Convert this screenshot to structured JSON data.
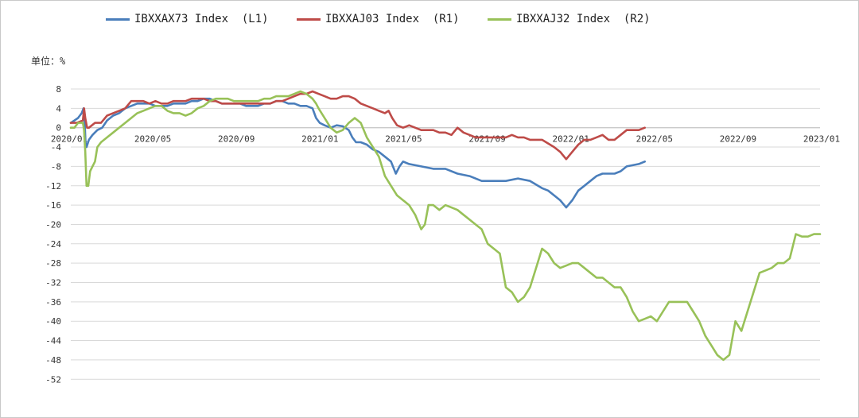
{
  "unit_label": "单位：%",
  "colors": {
    "L1": "#4a7ebb",
    "R1": "#be4b48",
    "R2": "#98c158",
    "grid": "#d9d9d9",
    "axis": "#bfbfbf"
  },
  "chart_data": {
    "type": "line",
    "ylim": [
      -52,
      8
    ],
    "y_ticks": [
      8,
      4,
      0,
      -4,
      -8,
      -12,
      -16,
      -20,
      -24,
      -28,
      -32,
      -36,
      -40,
      -44,
      -48,
      -52
    ],
    "x_ticks": [
      "2020/01",
      "2020/05",
      "2020/09",
      "2021/01",
      "2021/05",
      "2021/09",
      "2022/01",
      "2022/05",
      "2022/09",
      "2023/01"
    ],
    "grid": "horizontal",
    "legend_position": "top",
    "series": [
      {
        "name": "IBXXAX73 Index  (L1)",
        "color": "#4a7ebb",
        "points": [
          [
            0,
            1
          ],
          [
            0.3,
            1.5
          ],
          [
            0.6,
            2
          ],
          [
            0.9,
            3
          ],
          [
            1.05,
            4
          ],
          [
            1.15,
            1
          ],
          [
            1.22,
            -3
          ],
          [
            1.3,
            -4
          ],
          [
            1.5,
            -2.5
          ],
          [
            1.8,
            -1.5
          ],
          [
            2.2,
            -0.5
          ],
          [
            2.6,
            0
          ],
          [
            3,
            1.5
          ],
          [
            3.5,
            2.5
          ],
          [
            4,
            3
          ],
          [
            4.5,
            4
          ],
          [
            5,
            4.5
          ],
          [
            5.5,
            5
          ],
          [
            6,
            5
          ],
          [
            6.5,
            5
          ],
          [
            7,
            4.5
          ],
          [
            7.5,
            4.5
          ],
          [
            8,
            4.5
          ],
          [
            8.5,
            5
          ],
          [
            9,
            5
          ],
          [
            9.5,
            5
          ],
          [
            10,
            5.5
          ],
          [
            10.5,
            5.5
          ],
          [
            11,
            6
          ],
          [
            11.5,
            6
          ],
          [
            12,
            5.5
          ],
          [
            12.5,
            5
          ],
          [
            13,
            5
          ],
          [
            13.5,
            5
          ],
          [
            14,
            5
          ],
          [
            14.5,
            4.5
          ],
          [
            15,
            4.5
          ],
          [
            15.5,
            4.5
          ],
          [
            16,
            5
          ],
          [
            16.5,
            5
          ],
          [
            17,
            5.5
          ],
          [
            17.5,
            5.5
          ],
          [
            18,
            5
          ],
          [
            18.5,
            5
          ],
          [
            19,
            4.5
          ],
          [
            19.5,
            4.5
          ],
          [
            20,
            4
          ],
          [
            20.3,
            2
          ],
          [
            20.6,
            1
          ],
          [
            21,
            0.5
          ],
          [
            21.5,
            0
          ],
          [
            22,
            0.5
          ],
          [
            22.5,
            0.3
          ],
          [
            23,
            -0.5
          ],
          [
            23.3,
            -2
          ],
          [
            23.6,
            -3
          ],
          [
            24,
            -3
          ],
          [
            24.5,
            -3.5
          ],
          [
            25,
            -4.5
          ],
          [
            25.5,
            -5
          ],
          [
            26,
            -6
          ],
          [
            26.5,
            -7
          ],
          [
            26.9,
            -9.5
          ],
          [
            27.2,
            -8
          ],
          [
            27.5,
            -7
          ],
          [
            28,
            -7.5
          ],
          [
            29,
            -8
          ],
          [
            30,
            -8.5
          ],
          [
            31,
            -8.5
          ],
          [
            32,
            -9.5
          ],
          [
            33,
            -10
          ],
          [
            34,
            -11
          ],
          [
            35,
            -11
          ],
          [
            36,
            -11
          ],
          [
            37,
            -10.5
          ],
          [
            38,
            -11
          ],
          [
            39,
            -12.5
          ],
          [
            39.5,
            -13
          ],
          [
            40,
            -14
          ],
          [
            40.5,
            -15
          ],
          [
            41,
            -16.5
          ],
          [
            41.5,
            -15
          ],
          [
            42,
            -13
          ],
          [
            42.5,
            -12
          ],
          [
            43,
            -11
          ],
          [
            43.5,
            -10
          ],
          [
            44,
            -9.5
          ],
          [
            45,
            -9.5
          ],
          [
            45.5,
            -9
          ],
          [
            46,
            -8
          ],
          [
            47,
            -7.5
          ],
          [
            47.5,
            -7
          ]
        ]
      },
      {
        "name": "IBXXAJ03 Index  (R1)",
        "color": "#be4b48",
        "points": [
          [
            0,
            1
          ],
          [
            0.5,
            1
          ],
          [
            1,
            1.5
          ],
          [
            1.1,
            4
          ],
          [
            1.2,
            2
          ],
          [
            1.35,
            0
          ],
          [
            1.5,
            0
          ],
          [
            2,
            1
          ],
          [
            2.5,
            1
          ],
          [
            3,
            2.5
          ],
          [
            3.5,
            3
          ],
          [
            4,
            3.5
          ],
          [
            4.5,
            4
          ],
          [
            5,
            5.5
          ],
          [
            5.5,
            5.5
          ],
          [
            6,
            5.5
          ],
          [
            6.5,
            5
          ],
          [
            7,
            5.5
          ],
          [
            7.5,
            5
          ],
          [
            8,
            5
          ],
          [
            8.5,
            5.5
          ],
          [
            9,
            5.5
          ],
          [
            9.5,
            5.5
          ],
          [
            10,
            6
          ],
          [
            10.5,
            6
          ],
          [
            11,
            6
          ],
          [
            11.5,
            5.5
          ],
          [
            12,
            5.5
          ],
          [
            12.5,
            5
          ],
          [
            13,
            5
          ],
          [
            13.5,
            5
          ],
          [
            14,
            5
          ],
          [
            14.5,
            5
          ],
          [
            15,
            5
          ],
          [
            15.5,
            5
          ],
          [
            16,
            5
          ],
          [
            16.5,
            5
          ],
          [
            17,
            5.5
          ],
          [
            17.5,
            5.5
          ],
          [
            18,
            6
          ],
          [
            18.5,
            6.5
          ],
          [
            19,
            7
          ],
          [
            19.5,
            7
          ],
          [
            20,
            7.5
          ],
          [
            20.5,
            7
          ],
          [
            21,
            6.5
          ],
          [
            21.5,
            6
          ],
          [
            22,
            6
          ],
          [
            22.5,
            6.5
          ],
          [
            23,
            6.5
          ],
          [
            23.5,
            6
          ],
          [
            24,
            5
          ],
          [
            24.5,
            4.5
          ],
          [
            25,
            4
          ],
          [
            25.5,
            3.5
          ],
          [
            26,
            3
          ],
          [
            26.3,
            3.5
          ],
          [
            26.6,
            2
          ],
          [
            27,
            0.5
          ],
          [
            27.5,
            0
          ],
          [
            28,
            0.5
          ],
          [
            28.5,
            0
          ],
          [
            29,
            -0.5
          ],
          [
            29.5,
            -0.5
          ],
          [
            30,
            -0.5
          ],
          [
            30.5,
            -1
          ],
          [
            31,
            -1
          ],
          [
            31.5,
            -1.5
          ],
          [
            32,
            0
          ],
          [
            32.5,
            -1
          ],
          [
            33,
            -1.5
          ],
          [
            33.5,
            -2
          ],
          [
            34,
            -2
          ],
          [
            35,
            -2
          ],
          [
            36,
            -2
          ],
          [
            36.5,
            -1.5
          ],
          [
            37,
            -2
          ],
          [
            37.5,
            -2
          ],
          [
            38,
            -2.5
          ],
          [
            39,
            -2.5
          ],
          [
            40,
            -4
          ],
          [
            40.5,
            -5
          ],
          [
            41,
            -6.5
          ],
          [
            41.5,
            -5
          ],
          [
            42,
            -3.5
          ],
          [
            42.5,
            -2.5
          ],
          [
            43,
            -2.5
          ],
          [
            43.5,
            -2
          ],
          [
            44,
            -1.5
          ],
          [
            44.5,
            -2.5
          ],
          [
            45,
            -2.5
          ],
          [
            45.5,
            -1.5
          ],
          [
            46,
            -0.5
          ],
          [
            47,
            -0.5
          ],
          [
            47.5,
            0
          ]
        ]
      },
      {
        "name": "IBXXAJ32 Index  (R2)",
        "color": "#98c158",
        "points": [
          [
            0,
            0
          ],
          [
            0.3,
            0
          ],
          [
            0.6,
            1
          ],
          [
            1,
            1
          ],
          [
            1.1,
            -0.5
          ],
          [
            1.2,
            -5
          ],
          [
            1.3,
            -12
          ],
          [
            1.45,
            -12
          ],
          [
            1.6,
            -9
          ],
          [
            1.8,
            -8
          ],
          [
            2,
            -7
          ],
          [
            2.2,
            -4
          ],
          [
            2.5,
            -3
          ],
          [
            3,
            -2
          ],
          [
            3.5,
            -1
          ],
          [
            4,
            0
          ],
          [
            4.5,
            1
          ],
          [
            5,
            2
          ],
          [
            5.5,
            3
          ],
          [
            6,
            3.5
          ],
          [
            6.5,
            4
          ],
          [
            7,
            4.5
          ],
          [
            7.5,
            4.5
          ],
          [
            8,
            3.5
          ],
          [
            8.5,
            3
          ],
          [
            9,
            3
          ],
          [
            9.5,
            2.5
          ],
          [
            10,
            3
          ],
          [
            10.5,
            4
          ],
          [
            11,
            4.5
          ],
          [
            11.5,
            5.5
          ],
          [
            12,
            6
          ],
          [
            12.5,
            6
          ],
          [
            13,
            6
          ],
          [
            13.5,
            5.5
          ],
          [
            14,
            5.5
          ],
          [
            14.5,
            5.5
          ],
          [
            15,
            5.5
          ],
          [
            15.5,
            5.5
          ],
          [
            16,
            6
          ],
          [
            16.5,
            6
          ],
          [
            17,
            6.5
          ],
          [
            17.5,
            6.5
          ],
          [
            18,
            6.5
          ],
          [
            18.5,
            7
          ],
          [
            19,
            7.5
          ],
          [
            19.5,
            7
          ],
          [
            20,
            6
          ],
          [
            20.3,
            5
          ],
          [
            20.5,
            4
          ],
          [
            21,
            2
          ],
          [
            21.5,
            0
          ],
          [
            22,
            -1
          ],
          [
            22.5,
            -0.5
          ],
          [
            23,
            1
          ],
          [
            23.5,
            2
          ],
          [
            24,
            1
          ],
          [
            24.5,
            -2
          ],
          [
            25,
            -4
          ],
          [
            25.5,
            -6
          ],
          [
            26,
            -10
          ],
          [
            26.5,
            -12
          ],
          [
            27,
            -14
          ],
          [
            27.5,
            -15
          ],
          [
            28,
            -16
          ],
          [
            28.5,
            -18
          ],
          [
            29,
            -21
          ],
          [
            29.3,
            -20
          ],
          [
            29.6,
            -16
          ],
          [
            30,
            -16
          ],
          [
            30.5,
            -17
          ],
          [
            31,
            -16
          ],
          [
            31.5,
            -16.5
          ],
          [
            32,
            -17
          ],
          [
            32.5,
            -18
          ],
          [
            33,
            -19
          ],
          [
            33.5,
            -20
          ],
          [
            34,
            -21
          ],
          [
            34.5,
            -24
          ],
          [
            35,
            -25
          ],
          [
            35.5,
            -26
          ],
          [
            36,
            -33
          ],
          [
            36.5,
            -34
          ],
          [
            37,
            -36
          ],
          [
            37.5,
            -35
          ],
          [
            38,
            -33
          ],
          [
            38.5,
            -29
          ],
          [
            39,
            -25
          ],
          [
            39.5,
            -26
          ],
          [
            40,
            -28
          ],
          [
            40.5,
            -29
          ],
          [
            41,
            -28.5
          ],
          [
            41.5,
            -28
          ],
          [
            42,
            -28
          ],
          [
            42.5,
            -29
          ],
          [
            43,
            -30
          ],
          [
            43.5,
            -31
          ],
          [
            44,
            -31
          ],
          [
            44.5,
            -32
          ],
          [
            45,
            -33
          ],
          [
            45.5,
            -33
          ],
          [
            46,
            -35
          ],
          [
            46.5,
            -38
          ],
          [
            47,
            -40
          ],
          [
            47.5,
            -39.5
          ],
          [
            48,
            -39
          ],
          [
            48.5,
            -40
          ],
          [
            49,
            -38
          ],
          [
            49.5,
            -36
          ],
          [
            50,
            -36
          ],
          [
            50.5,
            -36
          ],
          [
            51,
            -36
          ],
          [
            51.5,
            -38
          ],
          [
            52,
            -40
          ],
          [
            52.5,
            -43
          ],
          [
            53,
            -45
          ],
          [
            53.5,
            -47
          ],
          [
            54,
            -48
          ],
          [
            54.5,
            -47
          ],
          [
            55,
            -40
          ],
          [
            55.5,
            -42
          ],
          [
            56,
            -38
          ],
          [
            56.5,
            -34
          ],
          [
            57,
            -30
          ],
          [
            57.5,
            -29.5
          ],
          [
            58,
            -29
          ],
          [
            58.5,
            -28
          ],
          [
            59,
            -28
          ],
          [
            59.5,
            -27
          ],
          [
            60,
            -22
          ],
          [
            60.5,
            -22.5
          ],
          [
            61,
            -22.5
          ],
          [
            61.5,
            -22
          ],
          [
            62,
            -22
          ]
        ]
      }
    ]
  }
}
